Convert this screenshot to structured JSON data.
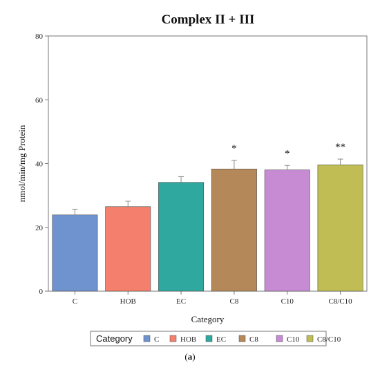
{
  "chart_data": {
    "type": "bar",
    "title": "Complex II + III",
    "xlabel": "Category",
    "ylabel": "nmol/min/mg Protein",
    "categories": [
      "C",
      "HOB",
      "EC",
      "C8",
      "C10",
      "C8/C10"
    ],
    "values": [
      23.9,
      26.5,
      34.1,
      38.3,
      38.0,
      39.6
    ],
    "errors": [
      1.8,
      1.7,
      1.8,
      2.7,
      1.4,
      1.8
    ],
    "significance": [
      "",
      "",
      "",
      "*",
      "*",
      "**"
    ],
    "colors": [
      "#6f93cf",
      "#f47f6d",
      "#2fa89f",
      "#b5885a",
      "#c68bd3",
      "#bfbd53"
    ],
    "ylim": [
      0,
      80
    ],
    "yticks": [
      0,
      20,
      40,
      60,
      80
    ],
    "grid": false,
    "legend": {
      "title": "Category",
      "entries": [
        "C",
        "HOB",
        "EC",
        "C8",
        "C10",
        "C8/C10"
      ],
      "placement": "bottom"
    }
  },
  "caption": {
    "open": "(",
    "letter": "a",
    "close": ")"
  }
}
